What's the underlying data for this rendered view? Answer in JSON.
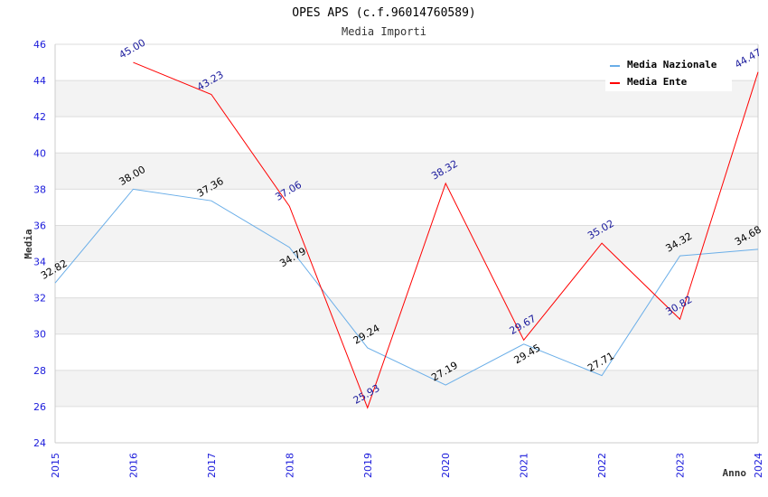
{
  "chart_data": {
    "type": "line",
    "title": "OPES APS (c.f.96014760589)",
    "subtitle": "Media Importi",
    "xlabel": "Anno",
    "ylabel": "Media",
    "x": [
      "2015",
      "2016",
      "2017",
      "2018",
      "2019",
      "2020",
      "2021",
      "2022",
      "2023",
      "2024"
    ],
    "ylim": [
      24,
      46
    ],
    "yticks": [
      "24",
      "26",
      "28",
      "30",
      "32",
      "34",
      "36",
      "38",
      "40",
      "42",
      "44",
      "46"
    ],
    "grid": true,
    "legend_position": "top-right",
    "series": [
      {
        "name": "Media Nazionale",
        "color": "#6aaee8",
        "label_color": "#000000",
        "x": [
          "2015",
          "2016",
          "2017",
          "2018",
          "2019",
          "2020",
          "2021",
          "2022",
          "2023",
          "2024"
        ],
        "values": [
          32.82,
          38.0,
          37.36,
          34.79,
          29.24,
          27.19,
          29.45,
          27.71,
          34.32,
          34.68
        ],
        "labels": [
          "32.82",
          "38.00",
          "37.36",
          "34.79",
          "29.24",
          "27.19",
          "29.45",
          "27.71",
          "34.32",
          "34.68"
        ]
      },
      {
        "name": "Media Ente",
        "color": "#ff0000",
        "label_color": "#1a1a9c",
        "x": [
          "2016",
          "2017",
          "2018",
          "2019",
          "2020",
          "2021",
          "2022",
          "2023",
          "2024"
        ],
        "values": [
          45.0,
          43.23,
          37.06,
          25.93,
          38.32,
          29.67,
          35.02,
          30.82,
          44.47
        ],
        "labels": [
          "45.00",
          "43.23",
          "37.06",
          "25.93",
          "38.32",
          "29.67",
          "35.02",
          "30.82",
          "44.47"
        ]
      }
    ]
  }
}
